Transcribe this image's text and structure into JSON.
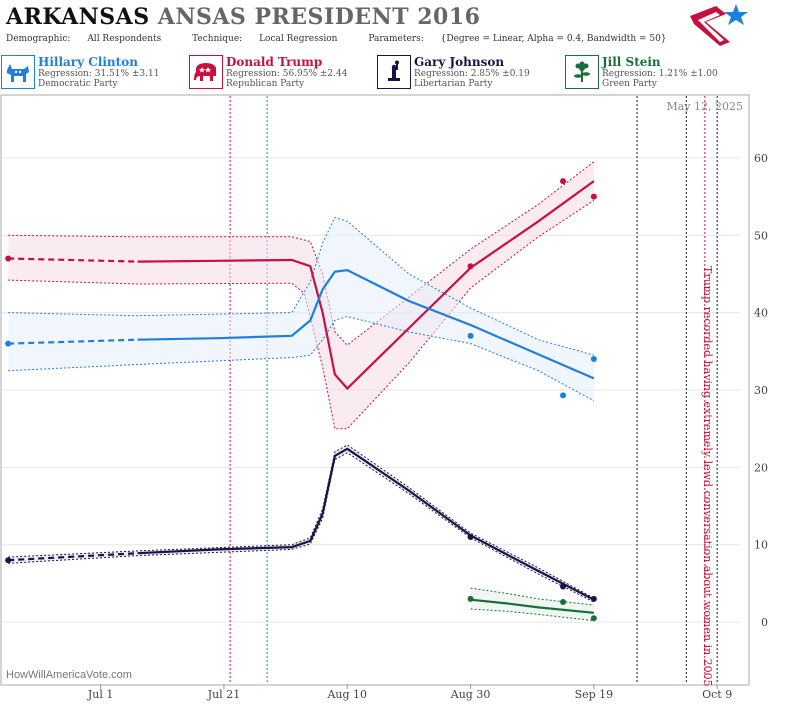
{
  "header": {
    "state": "ARKANSAS",
    "rest_title": "ANSAS PRESIDENT 2016",
    "demographic_label": "Demographic:",
    "demographic_value": "All Respondents",
    "technique_label": "Technique:",
    "technique_value": "Local Regression",
    "parameters_label": "Parameters:",
    "parameters_value": "{Degree = Linear, Alpha = 0.4, Bandwidth = 50}"
  },
  "candidates": [
    {
      "name": "Hillary Clinton",
      "regression": "Regression: 31.51% ±3.11",
      "party": "Democratic Party",
      "color": "#1f7fdc",
      "icon": "donkey-icon"
    },
    {
      "name": "Donald Trump",
      "regression": "Regression: 56.95% ±2.44",
      "party": "Republican Party",
      "color": "#c8103e",
      "icon": "elephant-icon"
    },
    {
      "name": "Gary Johnson",
      "regression": "Regression: 2.85% ±0.19",
      "party": "Libertarian Party",
      "color": "#1a1446",
      "icon": "liberty-icon"
    },
    {
      "name": "Jill Stein",
      "regression": "Regression: 1.21% ±1.00",
      "party": "Green Party",
      "color": "#1a6e3a",
      "icon": "flower-icon"
    }
  ],
  "chart_data": {
    "type": "line",
    "date_label": "May 12, 2025",
    "watermark": "HowWillAmericaVote.com",
    "annotation": "Trump recorded having extremely lewd conversation about women in 2005",
    "x_ticks": [
      "Jul 1",
      "Jul 21",
      "Aug 10",
      "Aug 30",
      "Sep 19",
      "Oct 9"
    ],
    "y_ticks": [
      0,
      10,
      20,
      30,
      40,
      50,
      60
    ],
    "y_range": [
      -8,
      68
    ],
    "x_range": [
      "2016-06-15",
      "2016-10-14"
    ],
    "event_lines": [
      {
        "date": "2016-07-22",
        "color": "#c8103e"
      },
      {
        "date": "2016-07-28",
        "color": "#1f7fdc"
      },
      {
        "date": "2016-09-26",
        "color": "#1a1446"
      },
      {
        "date": "2016-10-04",
        "color": "#1a1446"
      },
      {
        "date": "2016-10-07",
        "color": "#c8103e"
      },
      {
        "date": "2016-10-09",
        "color": "#1a1446"
      }
    ],
    "series": [
      {
        "name": "Donald Trump",
        "color": "#c8103e",
        "band": "#f6dbe3",
        "dashed_until": "2016-07-07",
        "line": [
          [
            "2016-06-16",
            47
          ],
          [
            "2016-07-07",
            46.6
          ],
          [
            "2016-07-20",
            46.7
          ],
          [
            "2016-08-01",
            46.8
          ],
          [
            "2016-08-04",
            46
          ],
          [
            "2016-08-06",
            40
          ],
          [
            "2016-08-08",
            32
          ],
          [
            "2016-08-10",
            30.2
          ],
          [
            "2016-08-20",
            38
          ],
          [
            "2016-08-30",
            45.8
          ],
          [
            "2016-09-10",
            51.8
          ],
          [
            "2016-09-19",
            57
          ]
        ],
        "upper": [
          [
            "2016-06-16",
            50
          ],
          [
            "2016-07-07",
            49.8
          ],
          [
            "2016-08-01",
            49.8
          ],
          [
            "2016-08-04",
            49.2
          ],
          [
            "2016-08-06",
            45
          ],
          [
            "2016-08-08",
            37.5
          ],
          [
            "2016-08-10",
            35.8
          ],
          [
            "2016-08-20",
            42
          ],
          [
            "2016-08-30",
            48.2
          ],
          [
            "2016-09-10",
            54
          ],
          [
            "2016-09-19",
            59.5
          ]
        ],
        "lower": [
          [
            "2016-06-16",
            44.2
          ],
          [
            "2016-07-07",
            43.7
          ],
          [
            "2016-08-01",
            43.8
          ],
          [
            "2016-08-03",
            42.5
          ],
          [
            "2016-08-06",
            33
          ],
          [
            "2016-08-08",
            25
          ],
          [
            "2016-08-10",
            25
          ],
          [
            "2016-08-20",
            33.5
          ],
          [
            "2016-08-30",
            43.2
          ],
          [
            "2016-09-10",
            49.8
          ],
          [
            "2016-09-19",
            54.5
          ]
        ],
        "points": [
          [
            "2016-06-16",
            47
          ],
          [
            "2016-08-30",
            46
          ],
          [
            "2016-09-14",
            57
          ],
          [
            "2016-09-19",
            55
          ]
        ]
      },
      {
        "name": "Hillary Clinton",
        "color": "#1f7fdc",
        "band": "#e6eff9",
        "dashed_until": "2016-07-07",
        "line": [
          [
            "2016-06-16",
            36
          ],
          [
            "2016-07-07",
            36.5
          ],
          [
            "2016-07-20",
            36.7
          ],
          [
            "2016-08-01",
            37
          ],
          [
            "2016-08-04",
            39
          ],
          [
            "2016-08-06",
            43
          ],
          [
            "2016-08-08",
            45.3
          ],
          [
            "2016-08-10",
            45.5
          ],
          [
            "2016-08-20",
            41.5
          ],
          [
            "2016-08-30",
            38.4
          ],
          [
            "2016-09-10",
            34.6
          ],
          [
            "2016-09-19",
            31.5
          ]
        ],
        "upper": [
          [
            "2016-06-16",
            40
          ],
          [
            "2016-07-07",
            39.6
          ],
          [
            "2016-08-01",
            40
          ],
          [
            "2016-08-04",
            44
          ],
          [
            "2016-08-06",
            49
          ],
          [
            "2016-08-08",
            52.3
          ],
          [
            "2016-08-10",
            51.8
          ],
          [
            "2016-08-20",
            45
          ],
          [
            "2016-08-30",
            40.6
          ],
          [
            "2016-09-10",
            36.5
          ],
          [
            "2016-09-19",
            34.5
          ]
        ],
        "lower": [
          [
            "2016-06-16",
            32.5
          ],
          [
            "2016-07-07",
            33.3
          ],
          [
            "2016-08-01",
            34.2
          ],
          [
            "2016-08-04",
            34.5
          ],
          [
            "2016-08-06",
            36.5
          ],
          [
            "2016-08-08",
            39
          ],
          [
            "2016-08-10",
            39.5
          ],
          [
            "2016-08-20",
            37.5
          ],
          [
            "2016-08-30",
            36
          ],
          [
            "2016-09-10",
            32.5
          ],
          [
            "2016-09-19",
            28.6
          ]
        ],
        "points": [
          [
            "2016-06-16",
            36
          ],
          [
            "2016-08-30",
            37
          ],
          [
            "2016-09-14",
            29.3
          ],
          [
            "2016-09-19",
            34
          ]
        ]
      },
      {
        "name": "Gary Johnson",
        "color": "#1a1446",
        "band": "#dddde6",
        "dashed_until": "2016-07-07",
        "line": [
          [
            "2016-06-16",
            8
          ],
          [
            "2016-07-07",
            8.9
          ],
          [
            "2016-07-20",
            9.4
          ],
          [
            "2016-08-01",
            9.7
          ],
          [
            "2016-08-04",
            10.5
          ],
          [
            "2016-08-06",
            14
          ],
          [
            "2016-08-08",
            21.5
          ],
          [
            "2016-08-10",
            22.4
          ],
          [
            "2016-08-20",
            17
          ],
          [
            "2016-08-30",
            11.2
          ],
          [
            "2016-09-10",
            6.6
          ],
          [
            "2016-09-19",
            2.9
          ]
        ],
        "upper": [
          [
            "2016-06-16",
            8.4
          ],
          [
            "2016-07-07",
            9.2
          ],
          [
            "2016-08-01",
            10
          ],
          [
            "2016-08-04",
            10.9
          ],
          [
            "2016-08-06",
            14.6
          ],
          [
            "2016-08-08",
            22
          ],
          [
            "2016-08-10",
            22.9
          ],
          [
            "2016-08-20",
            17.4
          ],
          [
            "2016-08-30",
            11.5
          ],
          [
            "2016-09-10",
            7
          ],
          [
            "2016-09-19",
            3.1
          ]
        ],
        "lower": [
          [
            "2016-06-16",
            7.6
          ],
          [
            "2016-07-07",
            8.6
          ],
          [
            "2016-08-01",
            9.4
          ],
          [
            "2016-08-04",
            10.1
          ],
          [
            "2016-08-06",
            13.4
          ],
          [
            "2016-08-08",
            21
          ],
          [
            "2016-08-10",
            21.9
          ],
          [
            "2016-08-20",
            16.6
          ],
          [
            "2016-08-30",
            10.9
          ],
          [
            "2016-09-10",
            6.2
          ],
          [
            "2016-09-19",
            2.6
          ]
        ],
        "points": [
          [
            "2016-06-16",
            8
          ],
          [
            "2016-08-30",
            11
          ],
          [
            "2016-09-14",
            4.6
          ],
          [
            "2016-09-19",
            3
          ]
        ]
      },
      {
        "name": "Jill Stein",
        "color": "#1a6e3a",
        "band": "#e3efe7",
        "dashed_until": "2016-06-01",
        "line": [
          [
            "2016-08-30",
            2.9
          ],
          [
            "2016-09-05",
            2.4
          ],
          [
            "2016-09-10",
            1.9
          ],
          [
            "2016-09-19",
            1.2
          ]
        ],
        "upper": [
          [
            "2016-08-30",
            4.4
          ],
          [
            "2016-09-05",
            3.7
          ],
          [
            "2016-09-10",
            3
          ],
          [
            "2016-09-19",
            2.2
          ]
        ],
        "lower": [
          [
            "2016-08-30",
            1.7
          ],
          [
            "2016-09-05",
            1.4
          ],
          [
            "2016-09-10",
            1
          ],
          [
            "2016-09-19",
            0.2
          ]
        ],
        "points": [
          [
            "2016-08-30",
            3
          ],
          [
            "2016-09-14",
            2.6
          ],
          [
            "2016-09-19",
            0.5
          ]
        ]
      }
    ]
  }
}
